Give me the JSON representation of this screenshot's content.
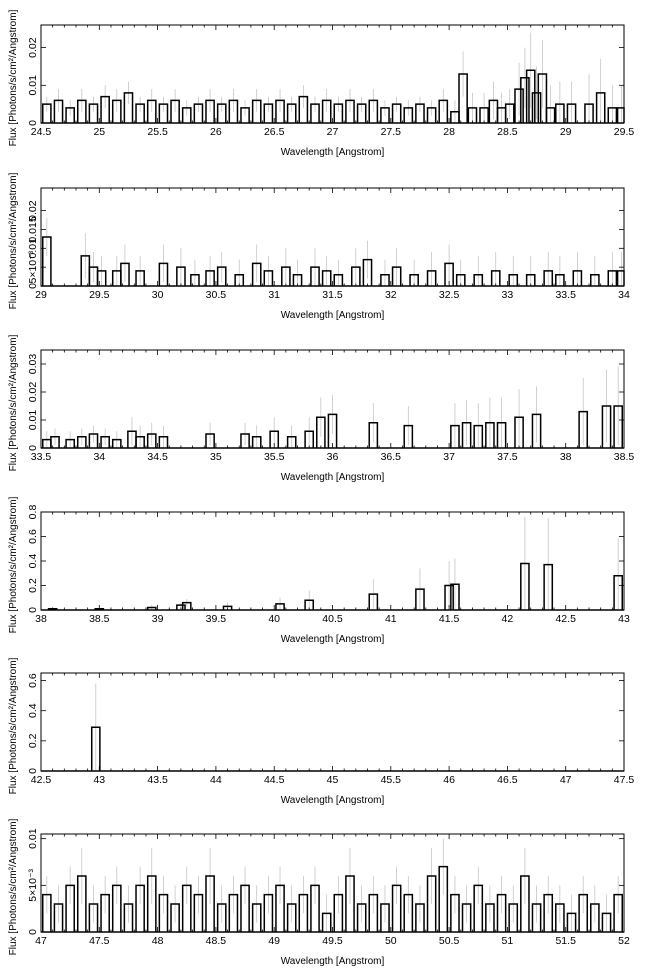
{
  "chart_data": [
    {
      "type": "line",
      "style": "step-histogram with error bars",
      "xlabel": "Wavelength [Angstrom]",
      "ylabel": "Flux [Photons/s/cm²/Angstrom]",
      "xlim": [
        24.5,
        29.5
      ],
      "ylim": [
        0,
        0.026
      ],
      "xticks": [
        24.5,
        25,
        25.5,
        26,
        26.5,
        27,
        27.5,
        28,
        28.5,
        29,
        29.5
      ],
      "xticklabels": [
        "24.5",
        "25",
        "25.5",
        "26",
        "26.5",
        "27",
        "27.5",
        "28",
        "28.5",
        "29",
        "29.5"
      ],
      "yticks": [
        0,
        0.01,
        0.02
      ],
      "yticklabels": [
        "0",
        "0.01",
        "0.02"
      ],
      "series": [
        {
          "x": [
            24.55,
            24.65,
            24.75,
            24.85,
            24.95,
            25.05,
            25.15,
            25.25,
            25.35,
            25.45,
            25.55,
            25.65,
            25.75,
            25.85,
            25.95,
            26.05,
            26.15,
            26.25,
            26.35,
            26.45,
            26.55,
            26.65,
            26.75,
            26.85,
            26.95,
            27.05,
            27.15,
            27.25,
            27.35,
            27.45,
            27.55,
            27.65,
            27.75,
            27.85,
            27.95,
            28.05,
            28.12,
            28.2,
            28.3,
            28.38,
            28.45,
            28.52,
            28.6,
            28.65,
            28.7,
            28.75,
            28.8,
            28.87,
            28.95,
            29.05,
            29.2,
            29.3,
            29.4,
            29.48
          ],
          "y": [
            0.005,
            0.006,
            0.004,
            0.006,
            0.005,
            0.007,
            0.006,
            0.008,
            0.005,
            0.006,
            0.005,
            0.006,
            0.004,
            0.005,
            0.006,
            0.005,
            0.006,
            0.004,
            0.006,
            0.005,
            0.006,
            0.005,
            0.007,
            0.005,
            0.006,
            0.005,
            0.006,
            0.005,
            0.006,
            0.004,
            0.005,
            0.004,
            0.005,
            0.004,
            0.006,
            0.003,
            0.013,
            0.004,
            0.004,
            0.006,
            0.004,
            0.005,
            0.009,
            0.012,
            0.014,
            0.008,
            0.013,
            0.004,
            0.005,
            0.005,
            0.005,
            0.008,
            0.004,
            0.004
          ],
          "err": [
            0.002,
            0.003,
            0.002,
            0.003,
            0.002,
            0.003,
            0.003,
            0.003,
            0.002,
            0.003,
            0.002,
            0.003,
            0.002,
            0.002,
            0.003,
            0.002,
            0.003,
            0.002,
            0.003,
            0.002,
            0.003,
            0.002,
            0.003,
            0.002,
            0.003,
            0.002,
            0.003,
            0.002,
            0.003,
            0.002,
            0.002,
            0.002,
            0.002,
            0.002,
            0.003,
            0.003,
            0.006,
            0.004,
            0.004,
            0.005,
            0.004,
            0.004,
            0.007,
            0.008,
            0.01,
            0.007,
            0.009,
            0.006,
            0.006,
            0.006,
            0.008,
            0.009,
            0.006,
            0.006
          ]
        }
      ]
    },
    {
      "type": "line",
      "style": "step-histogram with error bars",
      "xlabel": "Wavelength [Angstrom]",
      "ylabel": "Flux [Photons/s/cm²/Angstrom]",
      "xlim": [
        29,
        34
      ],
      "ylim": [
        0,
        0.026
      ],
      "xticks": [
        29,
        29.5,
        30,
        30.5,
        31,
        31.5,
        32,
        32.5,
        33,
        33.5,
        34
      ],
      "xticklabels": [
        "29",
        "29.5",
        "30",
        "30.5",
        "31",
        "31.5",
        "32",
        "32.5",
        "33",
        "33.5",
        "34"
      ],
      "yticks": [
        0,
        0.005,
        0.01,
        0.015,
        0.02
      ],
      "yticklabels": [
        "0",
        "5×10⁻³",
        "0.01",
        "0.015",
        "0.02"
      ],
      "series": [
        {
          "x": [
            29.05,
            29.38,
            29.45,
            29.52,
            29.65,
            29.72,
            29.85,
            30.05,
            30.2,
            30.32,
            30.45,
            30.55,
            30.7,
            30.85,
            30.95,
            31.1,
            31.2,
            31.35,
            31.45,
            31.55,
            31.7,
            31.8,
            31.95,
            32.05,
            32.2,
            32.35,
            32.5,
            32.6,
            32.75,
            32.9,
            33.05,
            33.2,
            33.35,
            33.45,
            33.6,
            33.75,
            33.9,
            33.98
          ],
          "y": [
            0.013,
            0.008,
            0.005,
            0.004,
            0.004,
            0.006,
            0.004,
            0.006,
            0.005,
            0.003,
            0.004,
            0.005,
            0.003,
            0.006,
            0.004,
            0.005,
            0.003,
            0.005,
            0.004,
            0.003,
            0.005,
            0.007,
            0.003,
            0.005,
            0.003,
            0.004,
            0.006,
            0.003,
            0.003,
            0.004,
            0.003,
            0.003,
            0.004,
            0.003,
            0.004,
            0.003,
            0.004,
            0.004
          ],
          "err": [
            0.005,
            0.006,
            0.004,
            0.004,
            0.004,
            0.005,
            0.004,
            0.005,
            0.005,
            0.004,
            0.004,
            0.004,
            0.004,
            0.005,
            0.004,
            0.005,
            0.004,
            0.005,
            0.004,
            0.004,
            0.005,
            0.005,
            0.004,
            0.005,
            0.004,
            0.005,
            0.005,
            0.004,
            0.005,
            0.005,
            0.005,
            0.005,
            0.005,
            0.005,
            0.005,
            0.005,
            0.005,
            0.005
          ]
        }
      ]
    },
    {
      "type": "line",
      "style": "step-histogram with error bars",
      "xlabel": "Wavelength [Angstrom]",
      "ylabel": "Flux [Photons/s/cm²/Angstrom]",
      "xlim": [
        33.5,
        38.5
      ],
      "ylim": [
        0,
        0.035
      ],
      "xticks": [
        33.5,
        34,
        34.5,
        35,
        35.5,
        36,
        36.5,
        37,
        37.5,
        38,
        38.5
      ],
      "xticklabels": [
        "33.5",
        "34",
        "34.5",
        "35",
        "35.5",
        "36",
        "36.5",
        "37",
        "37.5",
        "38",
        "38.5"
      ],
      "yticks": [
        0,
        0.01,
        0.02,
        0.03
      ],
      "yticklabels": [
        "0",
        "0.01",
        "0.02",
        "0.03"
      ],
      "series": [
        {
          "x": [
            33.55,
            33.62,
            33.75,
            33.85,
            33.95,
            34.05,
            34.15,
            34.28,
            34.35,
            34.45,
            34.55,
            34.95,
            35.25,
            35.35,
            35.5,
            35.65,
            35.8,
            35.9,
            36.0,
            36.35,
            36.65,
            37.05,
            37.15,
            37.25,
            37.35,
            37.45,
            37.6,
            37.75,
            38.15,
            38.35,
            38.45
          ],
          "y": [
            0.003,
            0.004,
            0.003,
            0.004,
            0.005,
            0.004,
            0.003,
            0.006,
            0.004,
            0.005,
            0.004,
            0.005,
            0.005,
            0.004,
            0.006,
            0.004,
            0.006,
            0.011,
            0.012,
            0.009,
            0.008,
            0.008,
            0.009,
            0.008,
            0.009,
            0.009,
            0.011,
            0.012,
            0.013,
            0.015,
            0.015
          ],
          "err": [
            0.003,
            0.003,
            0.003,
            0.003,
            0.003,
            0.003,
            0.003,
            0.005,
            0.004,
            0.004,
            0.004,
            0.004,
            0.004,
            0.004,
            0.005,
            0.004,
            0.005,
            0.007,
            0.007,
            0.007,
            0.007,
            0.008,
            0.008,
            0.008,
            0.009,
            0.009,
            0.01,
            0.01,
            0.012,
            0.013,
            0.014
          ]
        }
      ]
    },
    {
      "type": "line",
      "style": "step-histogram with error bars",
      "xlabel": "Wavelength [Angstrom]",
      "ylabel": "Flux [Photons/s/cm²/Angstrom]",
      "xlim": [
        38,
        43
      ],
      "ylim": [
        0,
        0.8
      ],
      "xticks": [
        38,
        38.5,
        39,
        39.5,
        40,
        40.5,
        41,
        41.5,
        42,
        42.5,
        43
      ],
      "xticklabels": [
        "38",
        "38.5",
        "39",
        "39.5",
        "40",
        "40.5",
        "41",
        "41.5",
        "42",
        "42.5",
        "43"
      ],
      "yticks": [
        0,
        0.2,
        0.4,
        0.6,
        0.8
      ],
      "yticklabels": [
        "0",
        "0.2",
        "0.4",
        "0.6",
        "0.8"
      ],
      "series": [
        {
          "x": [
            38.1,
            38.5,
            38.95,
            39.2,
            39.25,
            39.6,
            40.05,
            40.3,
            40.85,
            41.25,
            41.5,
            41.55,
            42.15,
            42.35,
            42.95
          ],
          "y": [
            0.01,
            0.01,
            0.02,
            0.04,
            0.06,
            0.03,
            0.05,
            0.08,
            0.13,
            0.17,
            0.2,
            0.21,
            0.38,
            0.37,
            0.28
          ],
          "err": [
            0.01,
            0.01,
            0.02,
            0.02,
            0.03,
            0.03,
            0.05,
            0.08,
            0.12,
            0.17,
            0.2,
            0.21,
            0.38,
            0.38,
            0.3
          ]
        }
      ]
    },
    {
      "type": "line",
      "style": "step-histogram with error bars",
      "xlabel": "Wavelength [Angstrom]",
      "ylabel": "Flux [Photons/s/cm²/Angstrom]",
      "xlim": [
        42.5,
        47.5
      ],
      "ylim": [
        0,
        0.65
      ],
      "xticks": [
        42.5,
        43,
        43.5,
        44,
        44.5,
        45,
        45.5,
        46,
        46.5,
        47,
        47.5
      ],
      "xticklabels": [
        "42.5",
        "43",
        "43.5",
        "44",
        "44.5",
        "45",
        "45.5",
        "46",
        "46.5",
        "47",
        "47.5"
      ],
      "yticks": [
        0,
        0.2,
        0.4,
        0.6
      ],
      "yticklabels": [
        "0",
        "0.2",
        "0.4",
        "0.6"
      ],
      "series": [
        {
          "x": [
            42.97
          ],
          "y": [
            0.29
          ],
          "err": [
            0.29
          ]
        }
      ]
    },
    {
      "type": "line",
      "style": "step-histogram with error bars",
      "xlabel": "Wavelength [Angstrom]",
      "ylabel": "Flux [Photons/s/cm²/Angstrom]",
      "xlim": [
        47,
        52
      ],
      "ylim": [
        0,
        0.0105
      ],
      "xticks": [
        47,
        47.5,
        48,
        48.5,
        49,
        49.5,
        50,
        50.5,
        51,
        51.5,
        52
      ],
      "xticklabels": [
        "47",
        "47.5",
        "48",
        "48.5",
        "49",
        "49.5",
        "50",
        "50.5",
        "51",
        "51.5",
        "52"
      ],
      "yticks": [
        0,
        0.005,
        0.01
      ],
      "yticklabels": [
        "0",
        "5×10⁻³",
        "0.01"
      ],
      "series": [
        {
          "x": [
            47.05,
            47.15,
            47.25,
            47.35,
            47.45,
            47.55,
            47.65,
            47.75,
            47.85,
            47.95,
            48.05,
            48.15,
            48.25,
            48.35,
            48.45,
            48.55,
            48.65,
            48.75,
            48.85,
            48.95,
            49.05,
            49.15,
            49.25,
            49.35,
            49.45,
            49.55,
            49.65,
            49.75,
            49.85,
            49.95,
            50.05,
            50.15,
            50.25,
            50.35,
            50.45,
            50.55,
            50.65,
            50.75,
            50.85,
            50.95,
            51.05,
            51.15,
            51.25,
            51.35,
            51.45,
            51.55,
            51.65,
            51.75,
            51.85,
            51.95
          ],
          "y": [
            0.004,
            0.003,
            0.005,
            0.006,
            0.003,
            0.004,
            0.005,
            0.003,
            0.005,
            0.006,
            0.004,
            0.003,
            0.005,
            0.004,
            0.006,
            0.003,
            0.004,
            0.005,
            0.003,
            0.004,
            0.005,
            0.003,
            0.004,
            0.005,
            0.002,
            0.004,
            0.006,
            0.003,
            0.004,
            0.003,
            0.005,
            0.004,
            0.003,
            0.006,
            0.007,
            0.004,
            0.003,
            0.005,
            0.003,
            0.004,
            0.003,
            0.006,
            0.003,
            0.004,
            0.003,
            0.002,
            0.004,
            0.003,
            0.002,
            0.004
          ],
          "err": [
            0.002,
            0.002,
            0.002,
            0.003,
            0.002,
            0.002,
            0.002,
            0.002,
            0.002,
            0.003,
            0.002,
            0.002,
            0.002,
            0.002,
            0.003,
            0.002,
            0.002,
            0.002,
            0.002,
            0.002,
            0.002,
            0.002,
            0.002,
            0.002,
            0.002,
            0.002,
            0.003,
            0.002,
            0.002,
            0.002,
            0.002,
            0.002,
            0.002,
            0.003,
            0.003,
            0.002,
            0.002,
            0.002,
            0.002,
            0.002,
            0.002,
            0.003,
            0.002,
            0.002,
            0.002,
            0.002,
            0.002,
            0.002,
            0.002,
            0.002
          ]
        }
      ]
    }
  ]
}
